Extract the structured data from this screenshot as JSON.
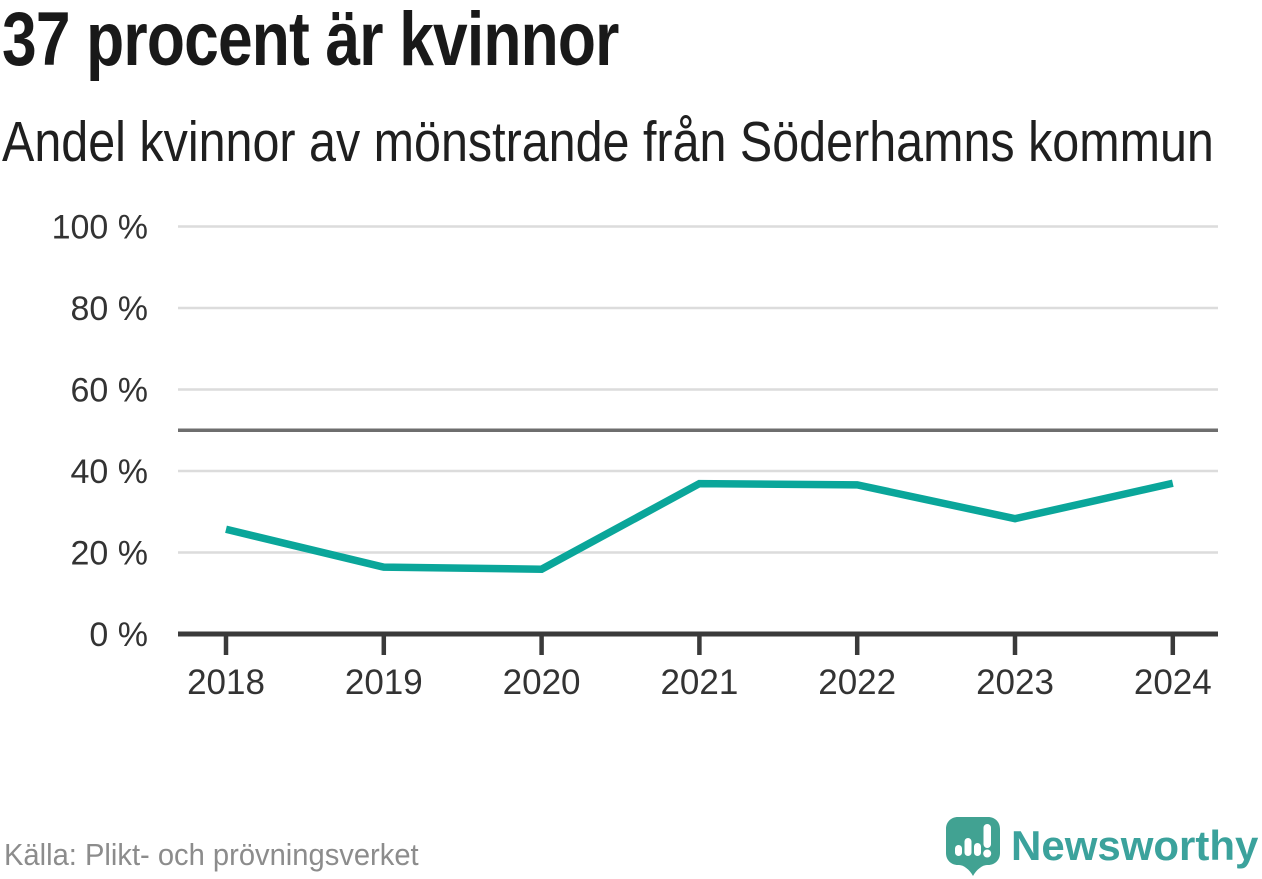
{
  "chart_data": {
    "type": "line",
    "title": "37 procent är kvinnor",
    "subtitle": "Andel kvinnor av mönstrande från Söderhamns kommun",
    "categories": [
      "2018",
      "2019",
      "2020",
      "2021",
      "2022",
      "2023",
      "2024"
    ],
    "values": [
      25.7,
      16.4,
      15.9,
      36.9,
      36.6,
      28.3,
      37
    ],
    "xlabel": "",
    "ylabel": "",
    "ylim": [
      0,
      100
    ],
    "yticks": [
      0,
      20,
      40,
      60,
      80,
      100
    ],
    "ytick_suffix": " %",
    "reference_line": 50,
    "grid": true,
    "legend": "none",
    "line_color": "#0aa69a",
    "reference_color": "#6e6e6e",
    "grid_color": "#dcdcdc",
    "axis_color": "#3a3a3a",
    "tick_label_color": "#333333"
  },
  "footer": {
    "source": "Källa: Plikt- och prövningsverket",
    "brand": "Newsworthy",
    "brand_color": "#3ba29c",
    "brand_icon_color": "#41a292",
    "brand_icon_mark_color": "#ffffff",
    "brand_icon": "speech-bubble-bar-chart-exclamation"
  }
}
